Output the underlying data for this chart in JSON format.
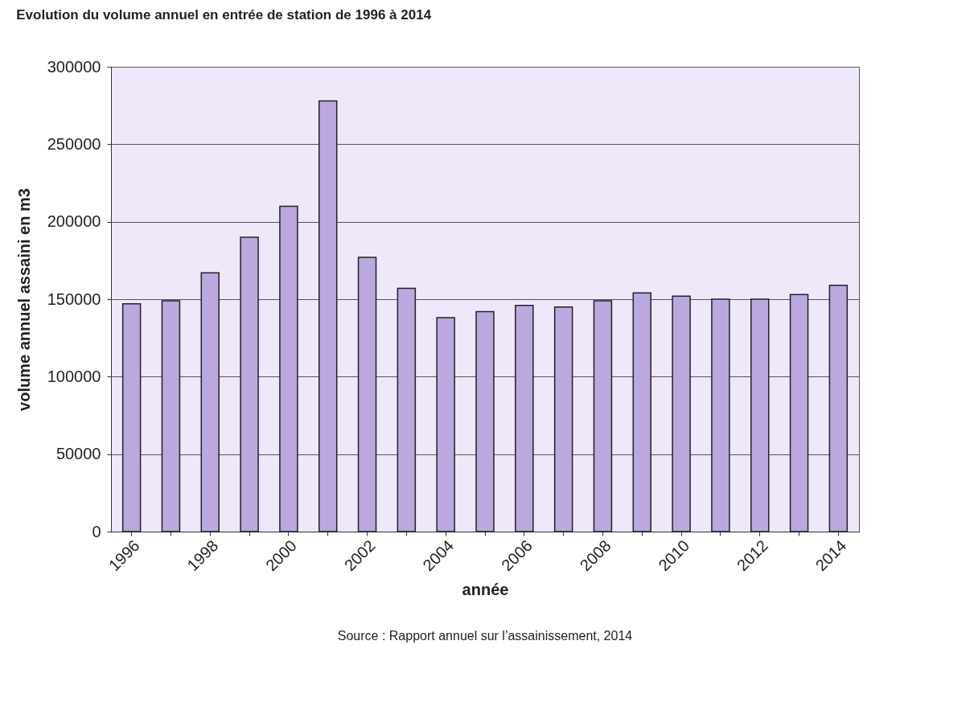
{
  "chart_data": {
    "type": "bar",
    "title": "Evolution du volume annuel en entrée de station de 1996 à 2014",
    "xlabel": "année",
    "ylabel": "volume annuel assaini  en m3",
    "categories": [
      "1996",
      null,
      "1998",
      null,
      "2000",
      null,
      "2002",
      null,
      "2004",
      null,
      "2006",
      null,
      "2008",
      null,
      "2010",
      null,
      "2012",
      null,
      "2014"
    ],
    "values": [
      147000,
      149000,
      167000,
      190000,
      210000,
      278000,
      177000,
      157000,
      138000,
      142000,
      146000,
      145000,
      149000,
      154000,
      152000,
      150000,
      150000,
      153000,
      159000
    ],
    "color": "#bba8de",
    "ylim": [
      0,
      300000
    ],
    "yticks": [
      0,
      50000,
      100000,
      150000,
      200000,
      250000,
      300000
    ],
    "grid": "y",
    "annotations": [
      "Source : Rapport annuel sur l’assainissement, 2014"
    ]
  }
}
